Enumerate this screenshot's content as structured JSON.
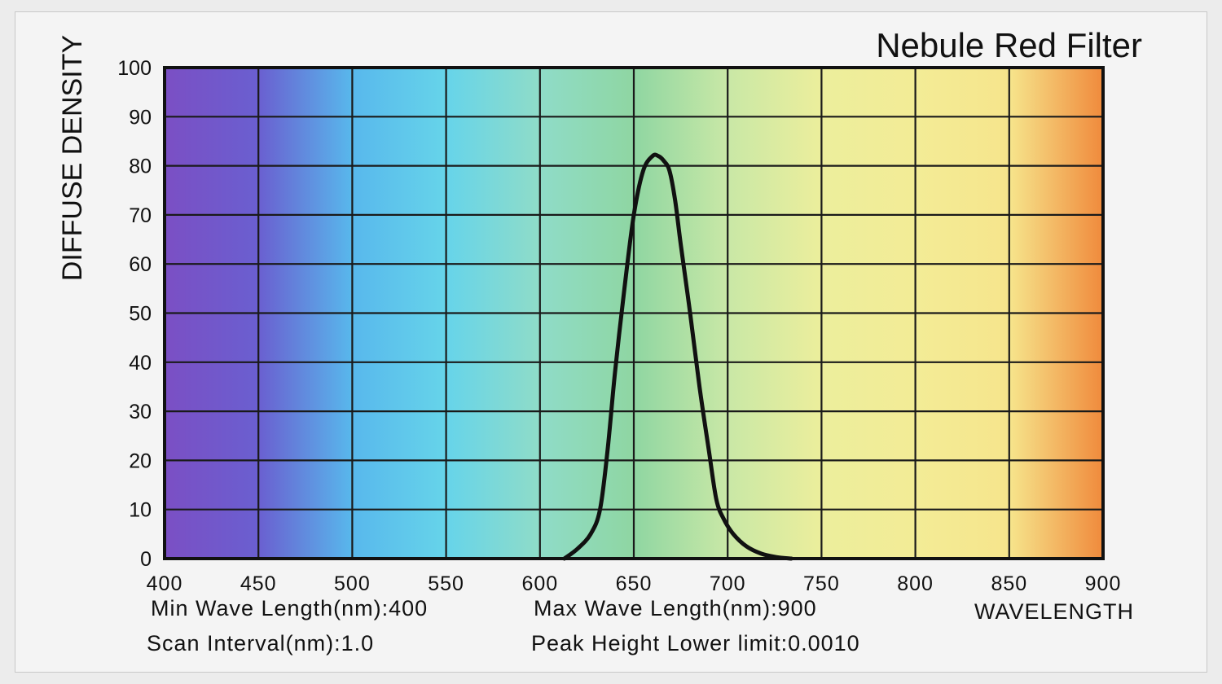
{
  "chart_data": {
    "type": "line",
    "title": "Nebule Red Filter",
    "xlabel": "WAVELENGTH",
    "ylabel": "DIFFUSE DENSITY",
    "xlim": [
      400,
      900
    ],
    "ylim": [
      0,
      100
    ],
    "x_ticks": [
      "400",
      "450",
      "500",
      "550",
      "600",
      "650",
      "700",
      "750",
      "800",
      "850",
      "900"
    ],
    "y_ticks": [
      "0",
      "10",
      "20",
      "30",
      "40",
      "50",
      "60",
      "70",
      "80",
      "90",
      "100"
    ],
    "grid": true,
    "background": "visible spectrum gradient from violet (400nm) to red-orange (900nm)",
    "spectrum_colors": [
      "#7b4fc4",
      "#6a5fd0",
      "#58b8ec",
      "#66d4ea",
      "#8fdcc8",
      "#8fd6a2",
      "#c9e8a6",
      "#ecee9c",
      "#f3ec96",
      "#f6e58c",
      "#f08a3c"
    ],
    "series": [
      {
        "name": "Nebule Red Filter",
        "color": "#111111",
        "x": [
          613,
          620,
          627,
          632,
          636,
          640,
          645,
          650,
          655,
          660,
          663,
          666,
          669,
          672,
          675,
          680,
          685,
          690,
          694,
          698,
          703,
          710,
          718,
          726,
          734
        ],
        "y": [
          0,
          2,
          5,
          10,
          22,
          38,
          55,
          70,
          79,
          82,
          82,
          81,
          79,
          73,
          64,
          50,
          35,
          22,
          12,
          8,
          5,
          2.5,
          1,
          0.3,
          0
        ]
      }
    ],
    "footer": {
      "min_wave_length": "Min Wave Length(nm):400",
      "max_wave_length": "Max Wave Length(nm):900",
      "scan_interval": "Scan Interval(nm):1.0",
      "peak_height_lower_limit": "Peak Height Lower limit:0.0010"
    }
  }
}
